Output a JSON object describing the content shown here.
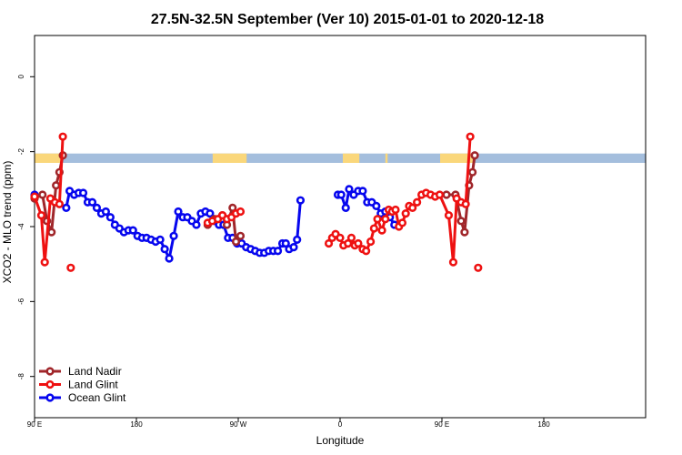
{
  "chart_data": {
    "type": "line",
    "title": "27.5N-32.5N September (Ver 10)   2015-01-01 to 2020-12-18",
    "xlabel": "Longitude",
    "ylabel": "XCO2 - MLO trend (ppm)",
    "xlim": [
      -90,
      180
    ],
    "ylim": [
      -9.1,
      1.1
    ],
    "x_ticks": [
      {
        "value": -90,
        "label": "90 E"
      },
      {
        "value": -45,
        "label": "180"
      },
      {
        "value": 0,
        "label": "90 W"
      },
      {
        "value": 45,
        "label": "0"
      },
      {
        "value": 90,
        "label": "90 E"
      },
      {
        "value": 135,
        "label": "180"
      }
    ],
    "y_ticks": [
      {
        "value": 0,
        "label": "0"
      },
      {
        "value": -2,
        "label": "-2"
      },
      {
        "value": -4,
        "label": "-4"
      },
      {
        "value": -6,
        "label": "-6"
      },
      {
        "value": -8,
        "label": "-8"
      }
    ],
    "grid": false,
    "legend_position": "bottom-left",
    "land_ocean_strip": {
      "y_top": -2.05,
      "y_bottom": -2.3,
      "ocean_color": "#a4bedd",
      "land_color": "#fad77b",
      "land_ranges": [
        [
          -90,
          -77.5
        ],
        [
          -11.3,
          3.7
        ],
        [
          46.2,
          53.5
        ],
        [
          65,
          66
        ],
        [
          89.2,
          104
        ]
      ]
    },
    "series": [
      {
        "name": "Land Nadir",
        "color": "#a0262a",
        "points": [
          [
            -90,
            -3.25
          ],
          [
            -86.5,
            -3.15
          ],
          [
            -84.5,
            -3.85
          ],
          [
            -82.5,
            -4.15
          ],
          [
            -80.5,
            -2.9
          ],
          [
            -79,
            -2.55
          ],
          [
            -77.5,
            -2.1
          ],
          [
            -13.5,
            -3.95
          ],
          [
            -10.5,
            -3.8
          ],
          [
            -7,
            -3.7
          ],
          [
            -5,
            -3.95
          ],
          [
            -2.5,
            -3.5
          ],
          [
            -1,
            -4.4
          ],
          [
            1,
            -4.25
          ],
          [
            92,
            -3.15
          ],
          [
            96,
            -3.15
          ],
          [
            98.5,
            -3.85
          ],
          [
            100,
            -4.15
          ],
          [
            102,
            -2.9
          ],
          [
            103.5,
            -2.55
          ],
          [
            104.5,
            -2.1
          ]
        ]
      },
      {
        "name": "Land Glint",
        "color": "#ee1111",
        "points": [
          [
            -90,
            -3.2
          ],
          [
            -87,
            -3.7
          ],
          [
            -85.5,
            -4.95
          ],
          [
            -83,
            -3.25
          ],
          [
            -81,
            -3.35
          ],
          [
            -79,
            -3.4
          ],
          [
            -77.5,
            -1.6
          ],
          [
            -13.5,
            -3.9
          ],
          [
            -11.5,
            -3.85
          ],
          [
            -9,
            -3.8
          ],
          [
            -7,
            -3.7
          ],
          [
            -5,
            -3.8
          ],
          [
            -3,
            -3.75
          ],
          [
            -1,
            -3.65
          ],
          [
            1,
            -3.6
          ],
          [
            40,
            -4.45
          ],
          [
            41.5,
            -4.3
          ],
          [
            43,
            -4.2
          ],
          [
            45,
            -4.3
          ],
          [
            46.5,
            -4.5
          ],
          [
            48.5,
            -4.45
          ],
          [
            50,
            -4.3
          ],
          [
            51.5,
            -4.5
          ],
          [
            53,
            -4.45
          ],
          [
            55,
            -4.6
          ],
          [
            56.5,
            -4.65
          ],
          [
            58.5,
            -4.4
          ],
          [
            60,
            -4.05
          ],
          [
            61.5,
            -3.8
          ],
          [
            63.5,
            -4.1
          ],
          [
            65,
            -3.8
          ],
          [
            66.5,
            -3.55
          ],
          [
            68,
            -3.6
          ],
          [
            69.5,
            -3.55
          ],
          [
            71,
            -4
          ],
          [
            72.5,
            -3.9
          ],
          [
            74,
            -3.65
          ],
          [
            75.5,
            -3.45
          ],
          [
            77,
            -3.5
          ],
          [
            79,
            -3.35
          ],
          [
            81,
            -3.15
          ],
          [
            83,
            -3.1
          ],
          [
            85,
            -3.15
          ],
          [
            87,
            -3.2
          ],
          [
            89,
            -3.15
          ],
          [
            93,
            -3.7
          ],
          [
            95,
            -4.95
          ],
          [
            96.5,
            -3.25
          ],
          [
            98.5,
            -3.35
          ],
          [
            100.5,
            -3.4
          ],
          [
            102.5,
            -1.6
          ]
        ]
      },
      {
        "name": "Ocean Glint",
        "color": "#0606ee",
        "points": [
          [
            -90,
            -3.15
          ],
          [
            -76,
            -3.5
          ],
          [
            -74.5,
            -3.05
          ],
          [
            -72.5,
            -3.15
          ],
          [
            -70.5,
            -3.1
          ],
          [
            -68.5,
            -3.1
          ],
          [
            -66.5,
            -3.35
          ],
          [
            -64.5,
            -3.35
          ],
          [
            -62.5,
            -3.5
          ],
          [
            -60.5,
            -3.65
          ],
          [
            -58.5,
            -3.6
          ],
          [
            -56.5,
            -3.75
          ],
          [
            -54.5,
            -3.95
          ],
          [
            -52.5,
            -4.05
          ],
          [
            -50.5,
            -4.15
          ],
          [
            -48.5,
            -4.1
          ],
          [
            -46.5,
            -4.1
          ],
          [
            -44.5,
            -4.25
          ],
          [
            -42.5,
            -4.3
          ],
          [
            -40.5,
            -4.3
          ],
          [
            -38.5,
            -4.35
          ],
          [
            -36.5,
            -4.4
          ],
          [
            -34.5,
            -4.35
          ],
          [
            -32.5,
            -4.6
          ],
          [
            -30.5,
            -4.85
          ],
          [
            -28.5,
            -4.25
          ],
          [
            -26.5,
            -3.6
          ],
          [
            -24.5,
            -3.75
          ],
          [
            -22.5,
            -3.75
          ],
          [
            -20.5,
            -3.85
          ],
          [
            -18.5,
            -3.95
          ],
          [
            -16.5,
            -3.65
          ],
          [
            -14.5,
            -3.6
          ],
          [
            -12.5,
            -3.65
          ],
          [
            -10.5,
            -3.85
          ],
          [
            -8.5,
            -3.95
          ],
          [
            -6.5,
            -3.95
          ],
          [
            -4.5,
            -4.3
          ],
          [
            -2.5,
            -4.3
          ],
          [
            -0.5,
            -4.45
          ],
          [
            1.5,
            -4.45
          ],
          [
            3.5,
            -4.55
          ],
          [
            5.5,
            -4.6
          ],
          [
            7.5,
            -4.65
          ],
          [
            9.5,
            -4.7
          ],
          [
            11.5,
            -4.7
          ],
          [
            13.5,
            -4.65
          ],
          [
            15.5,
            -4.65
          ],
          [
            17.5,
            -4.65
          ],
          [
            19.5,
            -4.45
          ],
          [
            21,
            -4.45
          ],
          [
            22.5,
            -4.6
          ],
          [
            24.5,
            -4.55
          ],
          [
            26,
            -4.35
          ],
          [
            27.5,
            -3.3
          ],
          [
            44,
            -3.15
          ],
          [
            45.5,
            -3.15
          ],
          [
            47.5,
            -3.5
          ],
          [
            49,
            -3.0
          ],
          [
            51,
            -3.15
          ],
          [
            53,
            -3.05
          ],
          [
            55,
            -3.05
          ],
          [
            57,
            -3.35
          ],
          [
            59,
            -3.35
          ],
          [
            61,
            -3.45
          ],
          [
            63,
            -3.65
          ],
          [
            65,
            -3.6
          ],
          [
            67,
            -3.75
          ],
          [
            69,
            -3.95
          ]
        ]
      }
    ],
    "outliers": [
      {
        "series": "Land Glint",
        "x": -74,
        "y": -5.1
      },
      {
        "series": "Land Glint",
        "x": 106,
        "y": -5.1
      }
    ],
    "markers": {
      "land_glint_plus": [
        {
          "x": -77.5,
          "y": -2.1
        },
        {
          "x": 102.5,
          "y": -2.1
        }
      ]
    }
  }
}
